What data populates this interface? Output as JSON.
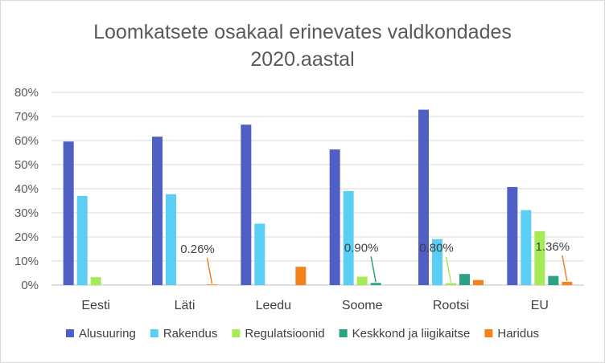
{
  "chart_data": {
    "type": "bar",
    "title_lines": [
      "Loomkatsete osakaal erinevates valdkondades",
      "2020.aastal"
    ],
    "categories": [
      "Eesti",
      "Läti",
      "Leedu",
      "Soome",
      "Rootsi",
      "EU"
    ],
    "series": [
      {
        "name": "Alusuuring",
        "color": "#4f5fc4",
        "values": [
          59.6,
          61.6,
          66.6,
          56.3,
          72.8,
          40.7
        ]
      },
      {
        "name": "Rakendus",
        "color": "#5bcff3",
        "values": [
          37.0,
          37.7,
          25.5,
          39.0,
          19.1,
          31.1
        ]
      },
      {
        "name": "Regulatsioonid",
        "color": "#a8ea55",
        "values": [
          3.3,
          0,
          0,
          3.5,
          0.8,
          22.4
        ]
      },
      {
        "name": "Keskkond ja liigikaitse",
        "color": "#2aa383",
        "values": [
          0,
          0,
          0,
          0.9,
          4.6,
          3.8
        ]
      },
      {
        "name": "Haridus",
        "color": "#f5821f",
        "values": [
          0,
          0.26,
          7.6,
          0,
          2.1,
          1.36
        ]
      }
    ],
    "ylim": [
      0,
      80
    ],
    "yticks": [
      0,
      10,
      20,
      30,
      40,
      50,
      60,
      70,
      80
    ],
    "ytick_labels": [
      "0%",
      "10%",
      "20%",
      "30%",
      "40%",
      "50%",
      "60%",
      "70%",
      "80%"
    ],
    "grid": true,
    "legend_position": "bottom",
    "callouts": [
      {
        "category": "Läti",
        "series": "Haridus",
        "label": "0.26%"
      },
      {
        "category": "Soome",
        "series": "Keskkond ja liigikaitse",
        "label": "0.90%"
      },
      {
        "category": "Rootsi",
        "series": "Regulatsioonid",
        "label": "0.80%"
      },
      {
        "category": "EU",
        "series": "Haridus",
        "label": "1.36%"
      }
    ]
  }
}
